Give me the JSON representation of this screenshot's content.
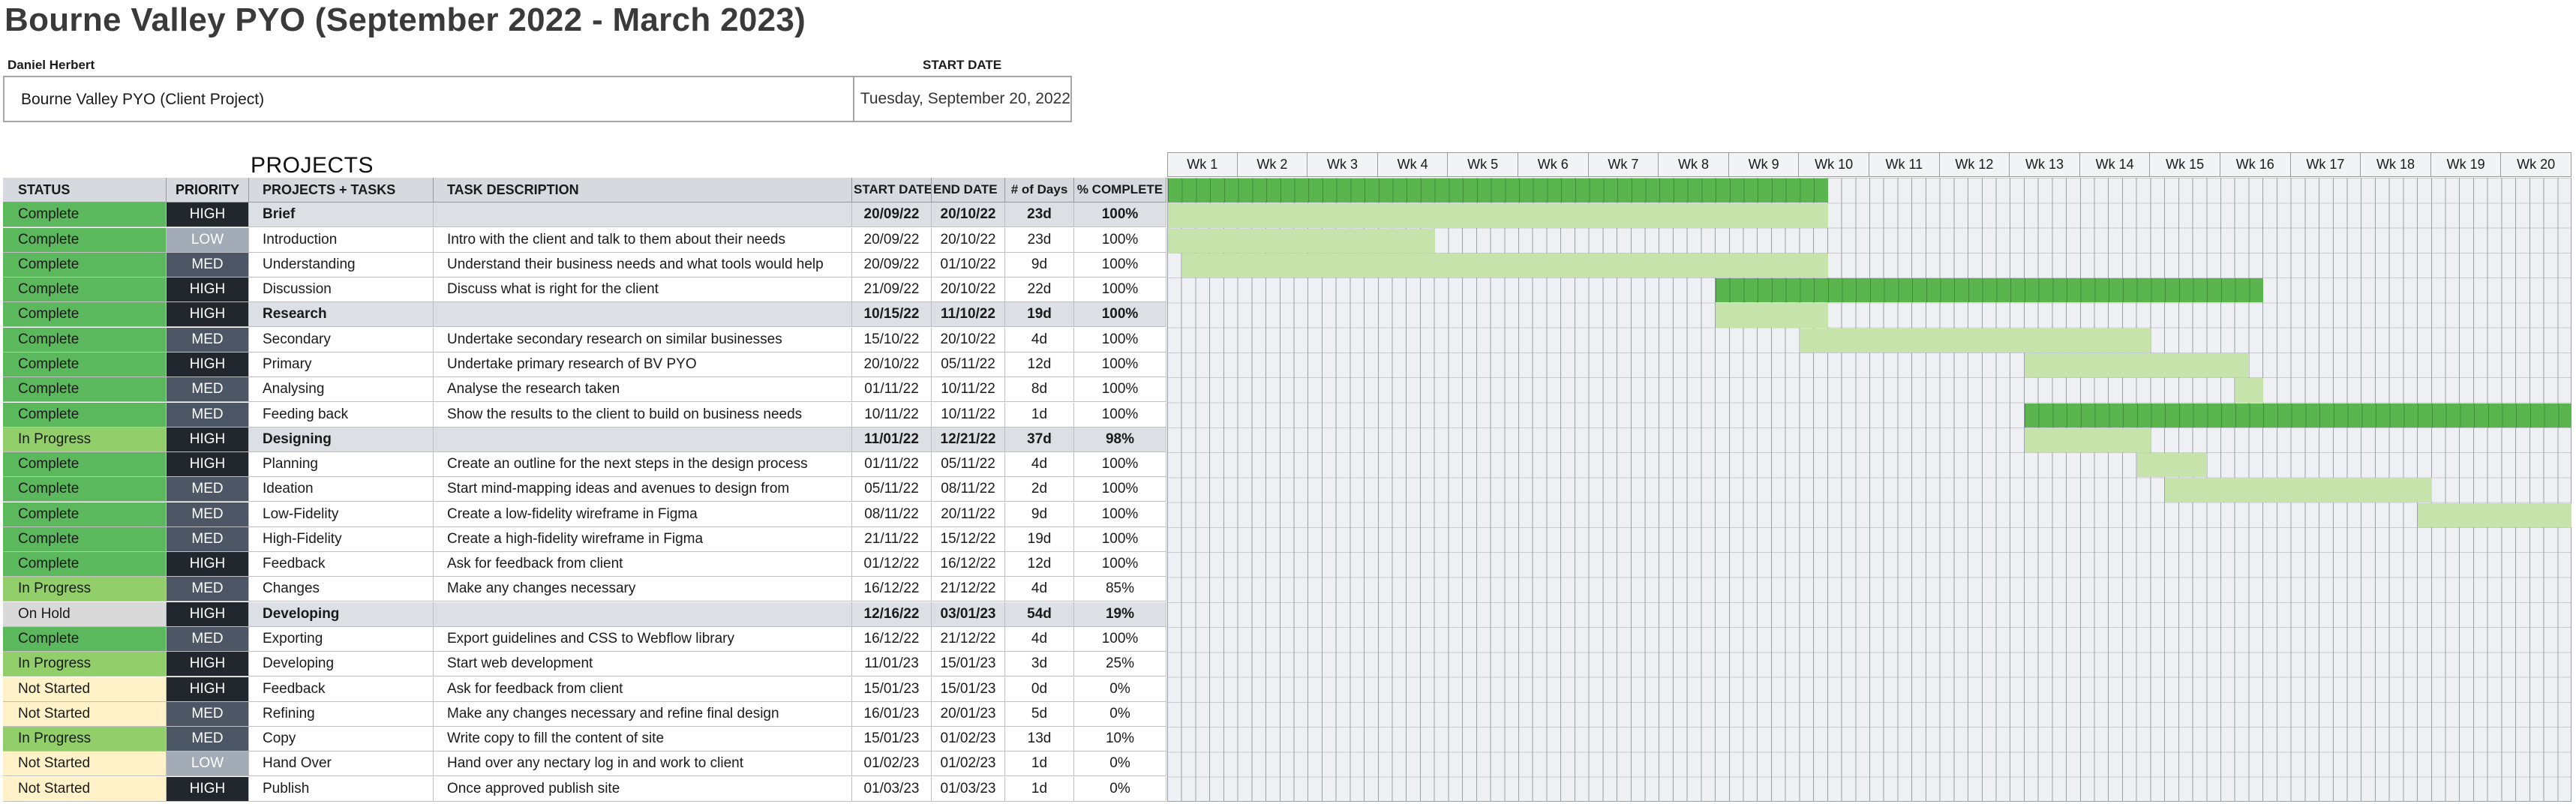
{
  "header": {
    "title": "Bourne Valley PYO (September 2022 - March 2023)",
    "owner": "Daniel Herbert",
    "start_date_label": "START DATE",
    "project_name": "Bourne Valley PYO (Client Project)",
    "start_date_value": "Tuesday, September 20, 2022",
    "projects_heading": "PROJECTS"
  },
  "columns": {
    "status": "STATUS",
    "priority": "PRIORITY",
    "task": "PROJECTS + TASKS",
    "desc": "TASK DESCRIPTION",
    "start": "START DATE",
    "end": "END DATE",
    "days": "# of Days",
    "pct": "% COMPLETE"
  },
  "colors": {
    "complete": "#5cb85c",
    "in_progress": "#92cf6b",
    "on_hold": "#d9d9d9",
    "not_started": "#fff2c8",
    "high": "#22272e",
    "med": "#4c5664",
    "low": "#a3abb6",
    "gantt_phase_bar": "#5bb54f",
    "gantt_task_bar": "#c6e3ab"
  },
  "weeks": [
    "Wk 1",
    "Wk 2",
    "Wk 3",
    "Wk 4",
    "Wk 5",
    "Wk 6",
    "Wk 7",
    "Wk 8",
    "Wk 9",
    "Wk 10",
    "Wk 11",
    "Wk 12",
    "Wk 13",
    "Wk 14",
    "Wk 15",
    "Wk 16",
    "Wk 17",
    "Wk 18",
    "Wk 19",
    "Wk 20"
  ],
  "rows": [
    {
      "type": "phase",
      "status": "Complete",
      "priority": "HIGH",
      "task": "Brief",
      "desc": "",
      "start": "20/09/22",
      "end": "20/10/22",
      "days": "23d",
      "pct": "100%",
      "gantt": {
        "from": 1,
        "to": 47
      }
    },
    {
      "type": "task",
      "status": "Complete",
      "priority": "LOW",
      "task": "Introduction",
      "desc": "Intro with the client and talk to them about their needs",
      "start": "20/09/22",
      "end": "20/10/22",
      "days": "23d",
      "pct": "100%",
      "gantt": {
        "from": 1,
        "to": 47
      }
    },
    {
      "type": "task",
      "status": "Complete",
      "priority": "MED",
      "task": "Understanding",
      "desc": "Understand their business needs and what tools would help",
      "start": "20/09/22",
      "end": "01/10/22",
      "days": "9d",
      "pct": "100%",
      "gantt": {
        "from": 1,
        "to": 19
      }
    },
    {
      "type": "task",
      "status": "Complete",
      "priority": "HIGH",
      "task": "Discussion",
      "desc": "Discuss what is right for the client",
      "start": "21/09/22",
      "end": "20/10/22",
      "days": "22d",
      "pct": "100%",
      "gantt": {
        "from": 2,
        "to": 47
      }
    },
    {
      "type": "phase",
      "status": "Complete",
      "priority": "HIGH",
      "task": "Research",
      "desc": "",
      "start": "10/15/22",
      "end": "11/10/22",
      "days": "19d",
      "pct": "100%",
      "gantt": {
        "from": 40,
        "to": 78
      }
    },
    {
      "type": "task",
      "status": "Complete",
      "priority": "MED",
      "task": "Secondary",
      "desc": "Undertake secondary research on similar businesses",
      "start": "15/10/22",
      "end": "20/10/22",
      "days": "4d",
      "pct": "100%",
      "gantt": {
        "from": 40,
        "to": 47
      }
    },
    {
      "type": "task",
      "status": "Complete",
      "priority": "HIGH",
      "task": "Primary",
      "desc": "Undertake primary research of BV PYO",
      "start": "20/10/22",
      "end": "05/11/22",
      "days": "12d",
      "pct": "100%",
      "gantt": {
        "from": 46,
        "to": 70
      }
    },
    {
      "type": "task",
      "status": "Complete",
      "priority": "MED",
      "task": "Analysing",
      "desc": "Analyse the research taken",
      "start": "01/11/22",
      "end": "10/11/22",
      "days": "8d",
      "pct": "100%",
      "gantt": {
        "from": 62,
        "to": 77
      }
    },
    {
      "type": "task",
      "status": "Complete",
      "priority": "MED",
      "task": "Feeding back",
      "desc": "Show the results to the client to build on business needs",
      "start": "10/11/22",
      "end": "10/11/22",
      "days": "1d",
      "pct": "100%",
      "gantt": {
        "from": 77,
        "to": 78
      }
    },
    {
      "type": "phase",
      "status": "In Progress",
      "priority": "HIGH",
      "task": "Designing",
      "desc": "",
      "start": "11/01/22",
      "end": "12/21/22",
      "days": "37d",
      "pct": "98%",
      "gantt": {
        "from": 62,
        "to": 137
      }
    },
    {
      "type": "task",
      "status": "Complete",
      "priority": "HIGH",
      "task": "Planning",
      "desc": "Create an outline for the next steps in the design process",
      "start": "01/11/22",
      "end": "05/11/22",
      "days": "4d",
      "pct": "100%",
      "gantt": {
        "from": 62,
        "to": 70
      }
    },
    {
      "type": "task",
      "status": "Complete",
      "priority": "MED",
      "task": "Ideation",
      "desc": "Start mind-mapping ideas and avenues to design from",
      "start": "05/11/22",
      "end": "08/11/22",
      "days": "2d",
      "pct": "100%",
      "gantt": {
        "from": 70,
        "to": 74
      }
    },
    {
      "type": "task",
      "status": "Complete",
      "priority": "MED",
      "task": "Low-Fidelity",
      "desc": "Create a low-fidelity wireframe in Figma",
      "start": "08/11/22",
      "end": "20/11/22",
      "days": "9d",
      "pct": "100%",
      "gantt": {
        "from": 72,
        "to": 90
      }
    },
    {
      "type": "task",
      "status": "Complete",
      "priority": "MED",
      "task": "High-Fidelity",
      "desc": "Create a high-fidelity wireframe in Figma",
      "start": "21/11/22",
      "end": "15/12/22",
      "days": "19d",
      "pct": "100%",
      "gantt": {
        "from": 90,
        "to": 129
      }
    },
    {
      "type": "task",
      "status": "Complete",
      "priority": "HIGH",
      "task": "Feedback",
      "desc": "Ask for feedback from client",
      "start": "01/12/22",
      "end": "16/12/22",
      "days": "12d",
      "pct": "100%",
      "gantt": {
        "from": 106,
        "to": 130
      }
    },
    {
      "type": "task",
      "status": "In Progress",
      "priority": "MED",
      "task": "Changes",
      "desc": "Make any changes necessary",
      "start": "16/12/22",
      "end": "21/12/22",
      "days": "4d",
      "pct": "85%",
      "gantt": {
        "from": 129,
        "to": 137
      }
    },
    {
      "type": "phase",
      "status": "On Hold",
      "priority": "HIGH",
      "task": "Developing",
      "desc": "",
      "start": "12/16/22",
      "end": "03/01/23",
      "days": "54d",
      "pct": "19%",
      "gantt": {
        "from": 129,
        "to": 200
      }
    },
    {
      "type": "task",
      "status": "Complete",
      "priority": "MED",
      "task": "Exporting",
      "desc": "Export guidelines and CSS to Webflow library",
      "start": "16/12/22",
      "end": "21/12/22",
      "days": "4d",
      "pct": "100%",
      "gantt": {
        "from": 129,
        "to": 137
      }
    },
    {
      "type": "task",
      "status": "In Progress",
      "priority": "HIGH",
      "task": "Developing",
      "desc": "Start web development",
      "start": "11/01/23",
      "end": "15/01/23",
      "days": "3d",
      "pct": "25%",
      "gantt": {
        "from": 165,
        "to": 171
      }
    },
    {
      "type": "task",
      "status": "Not Started",
      "priority": "HIGH",
      "task": "Feedback",
      "desc": "Ask for feedback from client",
      "start": "15/01/23",
      "end": "15/01/23",
      "days": "0d",
      "pct": "0%",
      "gantt": null
    },
    {
      "type": "task",
      "status": "Not Started",
      "priority": "MED",
      "task": "Refining",
      "desc": "Make any changes necessary and refine final design",
      "start": "16/01/23",
      "end": "20/01/23",
      "days": "5d",
      "pct": "0%",
      "gantt": {
        "from": 171,
        "to": 181
      }
    },
    {
      "type": "task",
      "status": "In Progress",
      "priority": "MED",
      "task": "Copy",
      "desc": "Write copy to fill the content of site",
      "start": "15/01/23",
      "end": "01/02/23",
      "days": "13d",
      "pct": "10%",
      "gantt": {
        "from": 171,
        "to": 198
      }
    },
    {
      "type": "task",
      "status": "Not Started",
      "priority": "LOW",
      "task": "Hand Over",
      "desc": "Hand over any nectary log in and work to client",
      "start": "01/02/23",
      "end": "01/02/23",
      "days": "1d",
      "pct": "0%",
      "gantt": null
    },
    {
      "type": "task",
      "status": "Not Started",
      "priority": "HIGH",
      "task": "Publish",
      "desc": "Once approved publish site",
      "start": "01/03/23",
      "end": "01/03/23",
      "days": "1d",
      "pct": "0%",
      "gantt": null
    }
  ]
}
